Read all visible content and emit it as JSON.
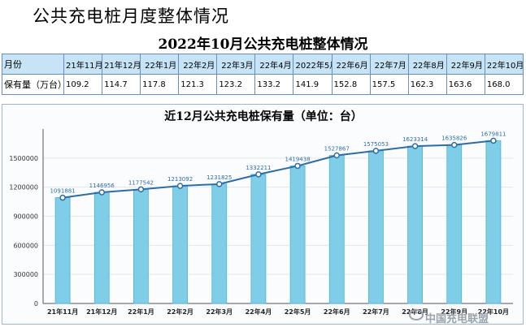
{
  "page": {
    "title": "公共充电桩月度整体情况"
  },
  "table": {
    "title": "2022年10月公共充电桩整体情况",
    "row_headers": [
      "月份",
      "保有量（万台）"
    ],
    "months": [
      "21年11月",
      "21年12月",
      "22年1月",
      "22年2月",
      "22年3月",
      "22年4月",
      "2022年5月",
      "22年6月",
      "22年7月",
      "22年8月",
      "22年9月",
      "22年10月"
    ],
    "values": [
      "109.2",
      "114.7",
      "117.8",
      "121.3",
      "123.2",
      "133.2",
      "141.9",
      "152.8",
      "157.5",
      "162.3",
      "163.6",
      "168.0"
    ]
  },
  "watermark": "中国充电联盟",
  "chart_data": {
    "type": "bar",
    "title": "近12月公共充电桩保有量（单位：台）",
    "categories": [
      "21年11月",
      "21年12月",
      "22年1月",
      "22年2月",
      "22年3月",
      "22年4月",
      "22年5月",
      "22年6月",
      "22年7月",
      "22年8月",
      "22年9月",
      "22年10月"
    ],
    "series": [
      {
        "values": [
          1091881,
          1146956,
          1177542,
          1213092,
          1231825,
          1332211,
          1419438,
          1527867,
          1575053,
          1623314,
          1635826,
          1679811
        ]
      }
    ],
    "overlay": "line",
    "data_labels": [
      "1091881",
      "1146956",
      "1177542",
      "1213092",
      "1231825",
      "1332211",
      "1419438",
      "1527867",
      "1575053",
      "1623314",
      "1635826",
      "1679811"
    ],
    "y_ticks": [
      "0",
      "300000",
      "600000",
      "900000",
      "1200000",
      "1500000"
    ],
    "ylim": [
      0,
      1800000
    ],
    "grid": true,
    "colors": {
      "bar": "#7fcde6",
      "bar_edge": "#4fb3d6",
      "line": "#2e6da4",
      "marker": "#ffffff"
    }
  }
}
